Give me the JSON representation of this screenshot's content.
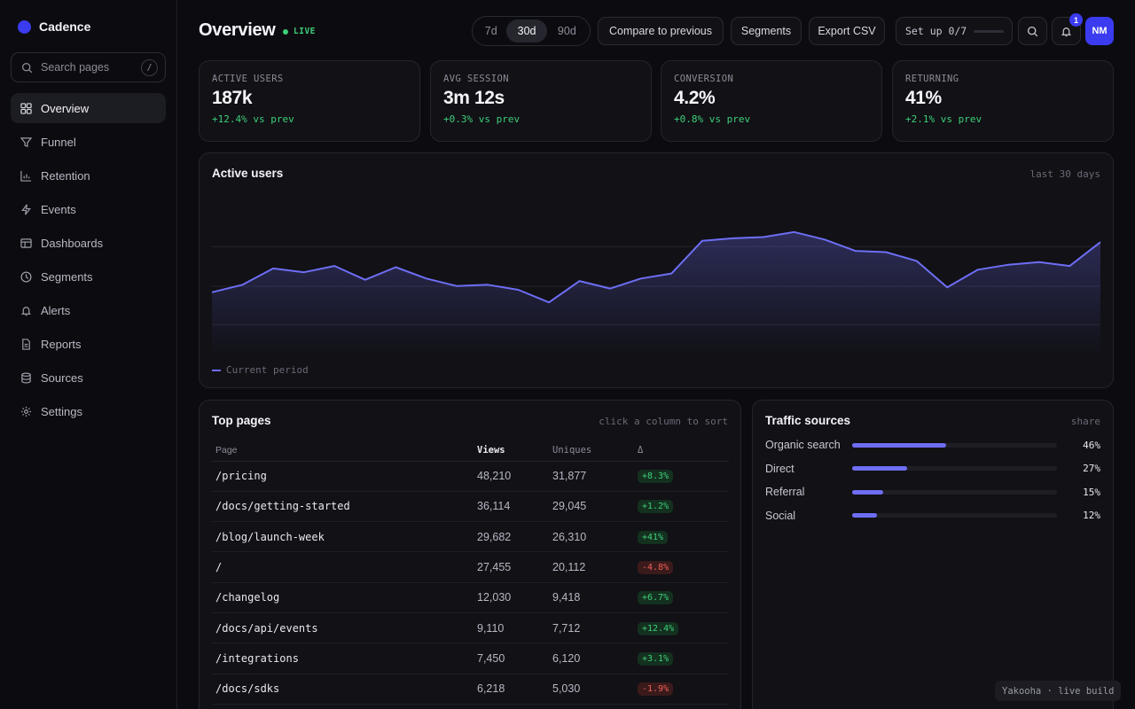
{
  "app": {
    "name": "Cadence"
  },
  "search": {
    "placeholder": "Search pages",
    "shortcut": "/"
  },
  "sidebar": {
    "items": [
      {
        "label": "Overview",
        "icon": "grid-icon",
        "active": true
      },
      {
        "label": "Funnel",
        "icon": "funnel-icon"
      },
      {
        "label": "Retention",
        "icon": "bar-chart-icon"
      },
      {
        "label": "Events",
        "icon": "bolt-icon"
      },
      {
        "label": "Dashboards",
        "icon": "layout-icon"
      },
      {
        "label": "Segments",
        "icon": "pie-icon"
      },
      {
        "label": "Alerts",
        "icon": "bell-icon"
      },
      {
        "label": "Reports",
        "icon": "document-icon"
      },
      {
        "label": "Sources",
        "icon": "database-icon"
      },
      {
        "label": "Settings",
        "icon": "gear-icon"
      }
    ]
  },
  "header": {
    "title": "Overview",
    "live_label": "LIVE",
    "ranges": [
      "7d",
      "30d",
      "90d"
    ],
    "selected_range": "30d",
    "compare_label": "Compare to previous",
    "segments_label": "Segments",
    "export_label": "Export CSV",
    "setup_label": "Set up 0/7",
    "setup_progress": 0,
    "notification_count": "1",
    "avatar_initials": "NM"
  },
  "kpis": [
    {
      "label": "ACTIVE USERS",
      "value": "187k",
      "delta": "+12.4% vs prev"
    },
    {
      "label": "AVG SESSION",
      "value": "3m 12s",
      "delta": "+0.3% vs prev"
    },
    {
      "label": "CONVERSION",
      "value": "4.2%",
      "delta": "+0.8% vs prev"
    },
    {
      "label": "RETURNING",
      "value": "41%",
      "delta": "+2.1% vs prev"
    }
  ],
  "active_users_chart": {
    "title": "Active users",
    "range_label": "last 30 days",
    "legend_label": "Current period"
  },
  "chart_data": {
    "type": "area",
    "title": "Active users",
    "series": [
      {
        "name": "Current period",
        "values": [
          46,
          52,
          65,
          62,
          67,
          56,
          66,
          57,
          51,
          52,
          48,
          38,
          55,
          49,
          57,
          61,
          87,
          89,
          90,
          94,
          88,
          79,
          78,
          71,
          50,
          64,
          68,
          70,
          67,
          86
        ]
      }
    ],
    "ylim": [
      0,
      120
    ],
    "grid": true,
    "line_color": "#6e6ef5"
  },
  "top_pages": {
    "title": "Top pages",
    "hint": "click a column to sort",
    "columns": [
      "Page",
      "Views",
      "Uniques",
      "Δ"
    ],
    "rows": [
      {
        "page": "/pricing",
        "views": "48,210",
        "uniques": "31,877",
        "delta": "+8.3%",
        "trend": "up"
      },
      {
        "page": "/docs/getting-started",
        "views": "36,114",
        "uniques": "29,045",
        "delta": "+1.2%",
        "trend": "up"
      },
      {
        "page": "/blog/launch-week",
        "views": "29,682",
        "uniques": "26,310",
        "delta": "+41%",
        "trend": "up"
      },
      {
        "page": "/",
        "views": "27,455",
        "uniques": "20,112",
        "delta": "-4.8%",
        "trend": "down"
      },
      {
        "page": "/changelog",
        "views": "12,030",
        "uniques": "9,418",
        "delta": "+6.7%",
        "trend": "up"
      },
      {
        "page": "/docs/api/events",
        "views": "9,110",
        "uniques": "7,712",
        "delta": "+12.4%",
        "trend": "up"
      },
      {
        "page": "/integrations",
        "views": "7,450",
        "uniques": "6,120",
        "delta": "+3.1%",
        "trend": "up"
      },
      {
        "page": "/docs/sdks",
        "views": "6,218",
        "uniques": "5,030",
        "delta": "-1.9%",
        "trend": "down"
      }
    ]
  },
  "traffic_sources": {
    "title": "Traffic sources",
    "hint": "share",
    "items": [
      {
        "name": "Organic search",
        "pct": "46%",
        "share": 0.46
      },
      {
        "name": "Direct",
        "pct": "27%",
        "share": 0.27
      },
      {
        "name": "Referral",
        "pct": "15%",
        "share": 0.15
      },
      {
        "name": "Social",
        "pct": "12%",
        "share": 0.12
      }
    ]
  },
  "footer": {
    "watermark": "Yakooha · live build"
  },
  "colors": {
    "accent": "#3b3bf0",
    "line": "#6e6ef5",
    "positive": "#3ecf7a",
    "negative": "#f0605a"
  }
}
